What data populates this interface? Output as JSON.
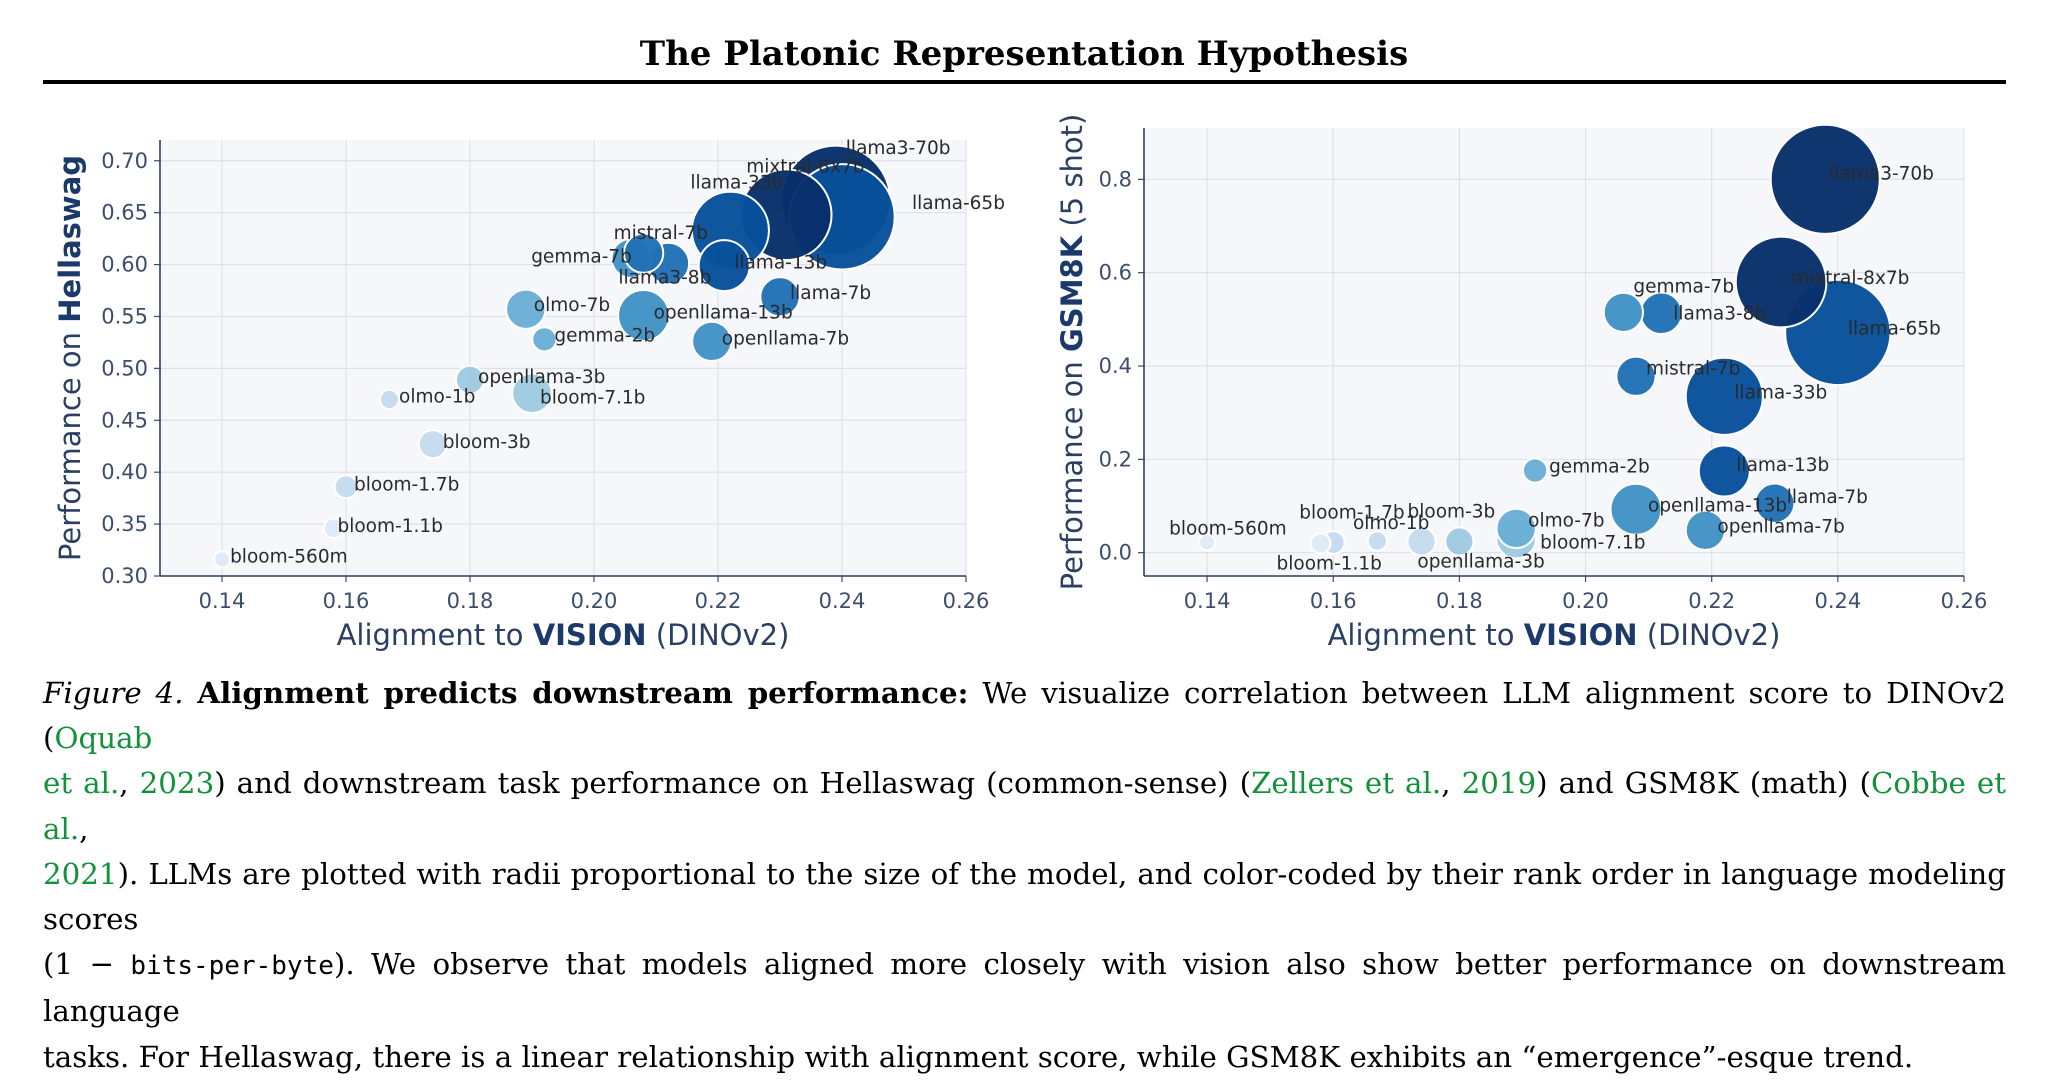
{
  "header": {
    "title": "The Platonic Representation Hypothesis"
  },
  "chart_data": [
    {
      "type": "scatter",
      "xlabel": {
        "prefix": "Alignment to ",
        "emphasis": "VISION",
        "suffix": " (DINOv2)"
      },
      "ylabel": {
        "prefix": "Performance on ",
        "emphasis": "Hellaswag",
        "suffix": ""
      },
      "xlim": [
        0.13,
        0.26
      ],
      "ylim": [
        0.3,
        0.72
      ],
      "xticks": [
        0.14,
        0.16,
        0.18,
        0.2,
        0.22,
        0.24,
        0.26
      ],
      "yticks": [
        0.3,
        0.35,
        0.4,
        0.45,
        0.5,
        0.55,
        0.6,
        0.65,
        0.7
      ],
      "xtick_labels": [
        "0.14",
        "0.16",
        "0.18",
        "0.20",
        "0.22",
        "0.24",
        "0.26"
      ],
      "ytick_labels": [
        "0.30",
        "0.35",
        "0.40",
        "0.45",
        "0.50",
        "0.55",
        "0.60",
        "0.65",
        "0.70"
      ],
      "grid": true,
      "points": [
        {
          "name": "bloom-560m",
          "x": 0.14,
          "y": 0.316,
          "size": 0.56,
          "rank": 1
        },
        {
          "name": "bloom-1.1b",
          "x": 0.158,
          "y": 0.346,
          "size": 1.1,
          "rank": 2
        },
        {
          "name": "bloom-1.7b",
          "x": 0.16,
          "y": 0.386,
          "size": 1.7,
          "rank": 3
        },
        {
          "name": "bloom-3b",
          "x": 0.174,
          "y": 0.427,
          "size": 3,
          "rank": 4
        },
        {
          "name": "olmo-1b",
          "x": 0.167,
          "y": 0.47,
          "size": 1,
          "rank": 5
        },
        {
          "name": "openllama-3b",
          "x": 0.18,
          "y": 0.489,
          "size": 3,
          "rank": 7
        },
        {
          "name": "bloom-7.1b",
          "x": 0.19,
          "y": 0.476,
          "size": 7.1,
          "rank": 6
        },
        {
          "name": "gemma-2b",
          "x": 0.192,
          "y": 0.528,
          "size": 2,
          "rank": 9
        },
        {
          "name": "olmo-7b",
          "x": 0.189,
          "y": 0.557,
          "size": 7,
          "rank": 10
        },
        {
          "name": "openllama-7b",
          "x": 0.219,
          "y": 0.526,
          "size": 7,
          "rank": 12
        },
        {
          "name": "openllama-13b",
          "x": 0.208,
          "y": 0.551,
          "size": 13,
          "rank": 13
        },
        {
          "name": "gemma-7b",
          "x": 0.206,
          "y": 0.606,
          "size": 7,
          "rank": 11
        },
        {
          "name": "llama3-8b",
          "x": 0.212,
          "y": 0.601,
          "size": 8,
          "rank": 15
        },
        {
          "name": "mistral-7b",
          "x": 0.208,
          "y": 0.611,
          "size": 7,
          "rank": 16
        },
        {
          "name": "llama-7b",
          "x": 0.23,
          "y": 0.569,
          "size": 7,
          "rank": 14
        },
        {
          "name": "llama-13b",
          "x": 0.221,
          "y": 0.599,
          "size": 13,
          "rank": 17
        },
        {
          "name": "llama-33b",
          "x": 0.222,
          "y": 0.633,
          "size": 33,
          "rank": 18
        },
        {
          "name": "mixtral-8x7b",
          "x": 0.231,
          "y": 0.648,
          "size": 47,
          "rank": 20
        },
        {
          "name": "llama-65b",
          "x": 0.24,
          "y": 0.646,
          "size": 65,
          "rank": 19
        },
        {
          "name": "llama3-70b",
          "x": 0.239,
          "y": 0.662,
          "size": 70,
          "rank": 21
        }
      ]
    },
    {
      "type": "scatter",
      "xlabel": {
        "prefix": "Alignment to ",
        "emphasis": "VISION",
        "suffix": " (DINOv2)"
      },
      "ylabel": {
        "prefix": "Performance on ",
        "emphasis": "GSM8K",
        "suffix": " (5 shot)"
      },
      "xlim": [
        0.13,
        0.26
      ],
      "ylim": [
        -0.05,
        0.91
      ],
      "xticks": [
        0.14,
        0.16,
        0.18,
        0.2,
        0.22,
        0.24,
        0.26
      ],
      "yticks": [
        0.0,
        0.2,
        0.4,
        0.6,
        0.8
      ],
      "xtick_labels": [
        "0.14",
        "0.16",
        "0.18",
        "0.20",
        "0.22",
        "0.24",
        "0.26"
      ],
      "ytick_labels": [
        "0.0",
        "0.2",
        "0.4",
        "0.6",
        "0.8"
      ],
      "grid": true,
      "points": [
        {
          "name": "bloom-560m",
          "x": 0.14,
          "y": 0.022,
          "size": 0.56,
          "rank": 1
        },
        {
          "name": "bloom-1.1b",
          "x": 0.158,
          "y": 0.02,
          "size": 1.1,
          "rank": 2
        },
        {
          "name": "bloom-1.7b",
          "x": 0.16,
          "y": 0.022,
          "size": 1.7,
          "rank": 3
        },
        {
          "name": "olmo-1b",
          "x": 0.167,
          "y": 0.025,
          "size": 1,
          "rank": 5
        },
        {
          "name": "bloom-3b",
          "x": 0.174,
          "y": 0.024,
          "size": 3,
          "rank": 4
        },
        {
          "name": "openllama-3b",
          "x": 0.18,
          "y": 0.024,
          "size": 3,
          "rank": 7
        },
        {
          "name": "bloom-7.1b",
          "x": 0.189,
          "y": 0.03,
          "size": 7.1,
          "rank": 6
        },
        {
          "name": "olmo-7b",
          "x": 0.189,
          "y": 0.052,
          "size": 7,
          "rank": 10
        },
        {
          "name": "gemma-2b",
          "x": 0.192,
          "y": 0.176,
          "size": 2,
          "rank": 9
        },
        {
          "name": "openllama-13b",
          "x": 0.208,
          "y": 0.093,
          "size": 13,
          "rank": 13
        },
        {
          "name": "openllama-7b",
          "x": 0.219,
          "y": 0.048,
          "size": 7,
          "rank": 12
        },
        {
          "name": "llama-7b",
          "x": 0.23,
          "y": 0.106,
          "size": 7,
          "rank": 14
        },
        {
          "name": "llama-13b",
          "x": 0.222,
          "y": 0.175,
          "size": 13,
          "rank": 17
        },
        {
          "name": "gemma-7b",
          "x": 0.206,
          "y": 0.515,
          "size": 7,
          "rank": 11
        },
        {
          "name": "llama3-8b",
          "x": 0.212,
          "y": 0.513,
          "size": 8,
          "rank": 15
        },
        {
          "name": "mistral-7b",
          "x": 0.208,
          "y": 0.378,
          "size": 7,
          "rank": 16
        },
        {
          "name": "llama-33b",
          "x": 0.222,
          "y": 0.335,
          "size": 33,
          "rank": 18
        },
        {
          "name": "mixtral-8x7b",
          "x": 0.231,
          "y": 0.58,
          "size": 47,
          "rank": 20
        },
        {
          "name": "llama-65b",
          "x": 0.24,
          "y": 0.472,
          "size": 65,
          "rank": 19
        },
        {
          "name": "llama3-70b",
          "x": 0.238,
          "y": 0.8,
          "size": 70,
          "rank": 21
        }
      ]
    }
  ],
  "caption": {
    "figure_label": "Figure 4.",
    "bold_title": "Alignment predicts downstream performance:",
    "line1_text": " We visualize correlation between LLM alignment score to DINOv2 (",
    "cite1_a": "Oquab",
    "line2_cite1_b": "et al.",
    "line2_sep1": ", ",
    "line2_cite1_year": "2023",
    "line2_text_a": ") and downstream task performance on Hellaswag (common-sense) (",
    "line2_cite2": "Zellers et al.",
    "line2_sep2": ", ",
    "line2_cite2_year": "2019",
    "line2_text_b": ") and GSM8K (math) (",
    "line2_cite3": "Cobbe et al.",
    "line2_sep3": ",",
    "line3_cite3_year": "2021",
    "line3_text": "). LLMs are plotted with radii proportional to the size of the model, and color-coded by their rank order in language modeling scores",
    "line4_text_a": "(1 − ",
    "line4_mono": "bits-per-byte",
    "line4_text_b": "). We observe that models aligned more closely with vision also show better performance on downstream language",
    "line5_text": "tasks. For Hellaswag, there is a linear relationship with alignment score, while GSM8K exhibits an “emergence”-esque trend."
  }
}
